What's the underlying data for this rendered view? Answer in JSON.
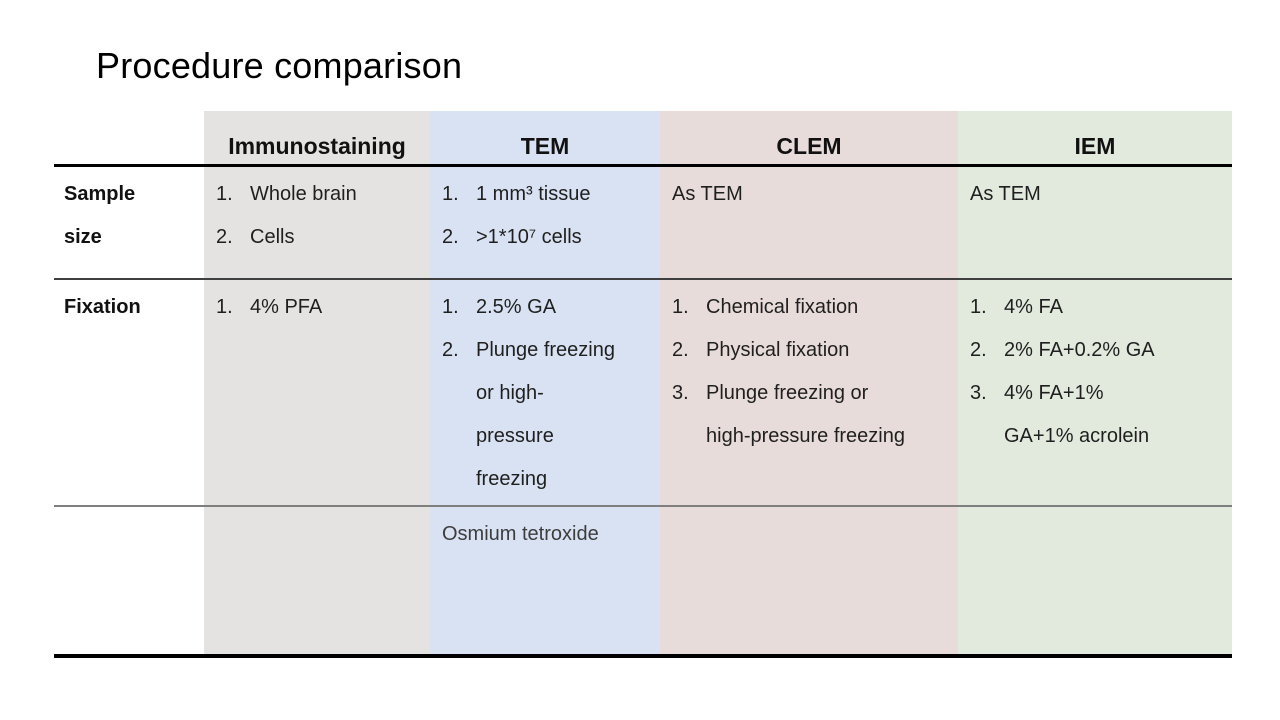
{
  "title": "Procedure comparison",
  "colors": {
    "immunostaining_column": "#e4e3e1",
    "tem_column": "#d9e2f2",
    "clem_column": "#e8dcda",
    "iem_column": "#e2eade"
  },
  "table": {
    "headers": {
      "label": "",
      "immunostaining": "Immunostaining",
      "tem": "TEM",
      "clem": "CLEM",
      "iem": "IEM"
    },
    "rows": [
      {
        "label": "Sample\nsize",
        "immunostaining": {
          "items": [
            "Whole brain",
            "Cells"
          ]
        },
        "tem": {
          "items": [
            "1 mm³ tissue",
            ">1*10⁷ cells"
          ]
        },
        "clem": {
          "text": "As TEM"
        },
        "iem": {
          "text": "As TEM"
        }
      },
      {
        "label": "Fixation",
        "immunostaining": {
          "items": [
            "4% PFA"
          ]
        },
        "tem": {
          "items": [
            "2.5% GA",
            "Plunge freezing\nor high-\npressure\nfreezing"
          ]
        },
        "clem": {
          "items": [
            "Chemical fixation",
            "Physical fixation",
            "Plunge freezing or\nhigh-pressure freezing"
          ]
        },
        "iem": {
          "items": [
            "4% FA",
            "2% FA+0.2% GA",
            "4% FA+1%\nGA+1% acrolein"
          ]
        }
      },
      {
        "label": "",
        "tem": {
          "text": "Osmium tetroxide"
        }
      }
    ]
  }
}
